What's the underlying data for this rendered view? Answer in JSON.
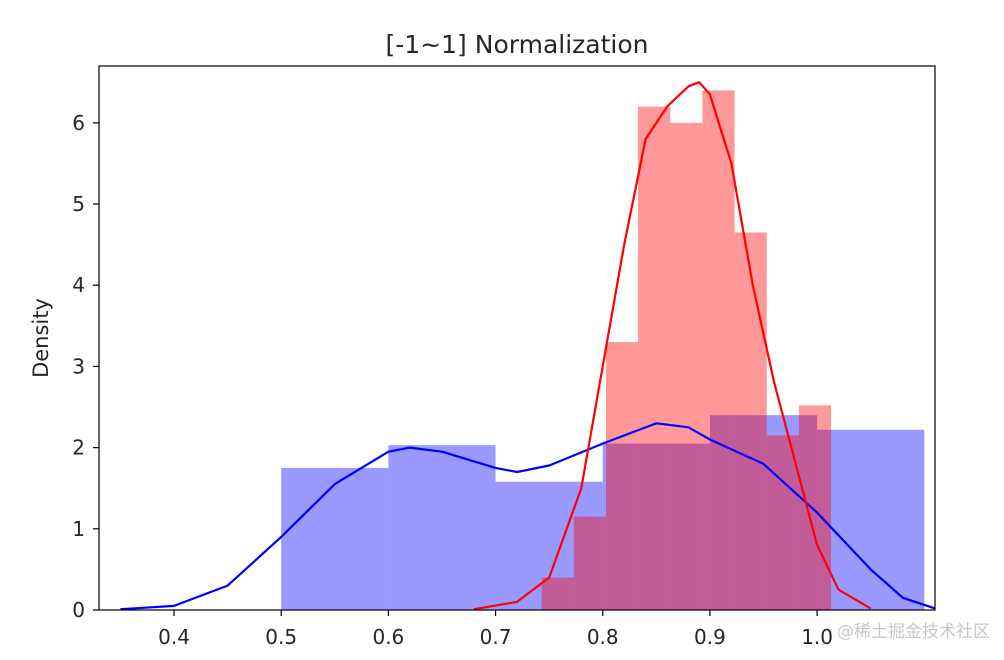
{
  "chart_data": {
    "type": "histogram",
    "title": "[-1~1] Normalization",
    "ylabel": "Density",
    "xlim": [
      0.33,
      1.11
    ],
    "ylim": [
      0,
      6.7
    ],
    "xticks": [
      0.4,
      0.5,
      0.6,
      0.7,
      0.8,
      0.9,
      1.0
    ],
    "xtick_labels": [
      "0.4",
      "0.5",
      "0.6",
      "0.7",
      "0.8",
      "0.9",
      "1.0"
    ],
    "yticks": [
      0,
      1,
      2,
      3,
      4,
      5,
      6
    ],
    "ytick_labels": [
      "0",
      "1",
      "2",
      "3",
      "4",
      "5",
      "6"
    ],
    "grid": false,
    "series": [
      {
        "color": "#0000ff",
        "bins": [
          {
            "x0": 0.5,
            "x1": 0.6,
            "density": 1.75
          },
          {
            "x0": 0.6,
            "x1": 0.7,
            "density": 2.03
          },
          {
            "x0": 0.7,
            "x1": 0.8,
            "density": 1.58
          },
          {
            "x0": 0.8,
            "x1": 0.9,
            "density": 2.05
          },
          {
            "x0": 0.9,
            "x1": 1.0,
            "density": 2.4
          },
          {
            "x0": 1.0,
            "x1": 1.1,
            "density": 2.22
          }
        ],
        "kde": [
          [
            0.35,
            0.01
          ],
          [
            0.4,
            0.05
          ],
          [
            0.45,
            0.3
          ],
          [
            0.5,
            0.9
          ],
          [
            0.55,
            1.55
          ],
          [
            0.6,
            1.95
          ],
          [
            0.62,
            2.0
          ],
          [
            0.65,
            1.95
          ],
          [
            0.7,
            1.75
          ],
          [
            0.72,
            1.7
          ],
          [
            0.75,
            1.78
          ],
          [
            0.8,
            2.05
          ],
          [
            0.85,
            2.3
          ],
          [
            0.88,
            2.25
          ],
          [
            0.9,
            2.1
          ],
          [
            0.95,
            1.8
          ],
          [
            1.0,
            1.2
          ],
          [
            1.05,
            0.5
          ],
          [
            1.08,
            0.15
          ],
          [
            1.11,
            0.02
          ]
        ]
      },
      {
        "color": "#ff0000",
        "bins": [
          {
            "x0": 0.743,
            "x1": 0.773,
            "density": 0.4
          },
          {
            "x0": 0.773,
            "x1": 0.803,
            "density": 1.15
          },
          {
            "x0": 0.803,
            "x1": 0.833,
            "density": 3.3
          },
          {
            "x0": 0.833,
            "x1": 0.863,
            "density": 6.2
          },
          {
            "x0": 0.863,
            "x1": 0.893,
            "density": 6.0
          },
          {
            "x0": 0.893,
            "x1": 0.923,
            "density": 6.4
          },
          {
            "x0": 0.923,
            "x1": 0.953,
            "density": 4.65
          },
          {
            "x0": 0.953,
            "x1": 0.983,
            "density": 2.15
          },
          {
            "x0": 0.983,
            "x1": 1.013,
            "density": 2.52
          }
        ],
        "kde": [
          [
            0.68,
            0.01
          ],
          [
            0.72,
            0.1
          ],
          [
            0.75,
            0.4
          ],
          [
            0.78,
            1.5
          ],
          [
            0.8,
            3.0
          ],
          [
            0.82,
            4.5
          ],
          [
            0.84,
            5.8
          ],
          [
            0.86,
            6.2
          ],
          [
            0.88,
            6.45
          ],
          [
            0.89,
            6.5
          ],
          [
            0.9,
            6.35
          ],
          [
            0.92,
            5.5
          ],
          [
            0.94,
            4.0
          ],
          [
            0.96,
            2.8
          ],
          [
            0.98,
            1.8
          ],
          [
            1.0,
            0.8
          ],
          [
            1.02,
            0.25
          ],
          [
            1.05,
            0.02
          ]
        ]
      }
    ]
  },
  "watermark": "@稀土掘金技术社区"
}
